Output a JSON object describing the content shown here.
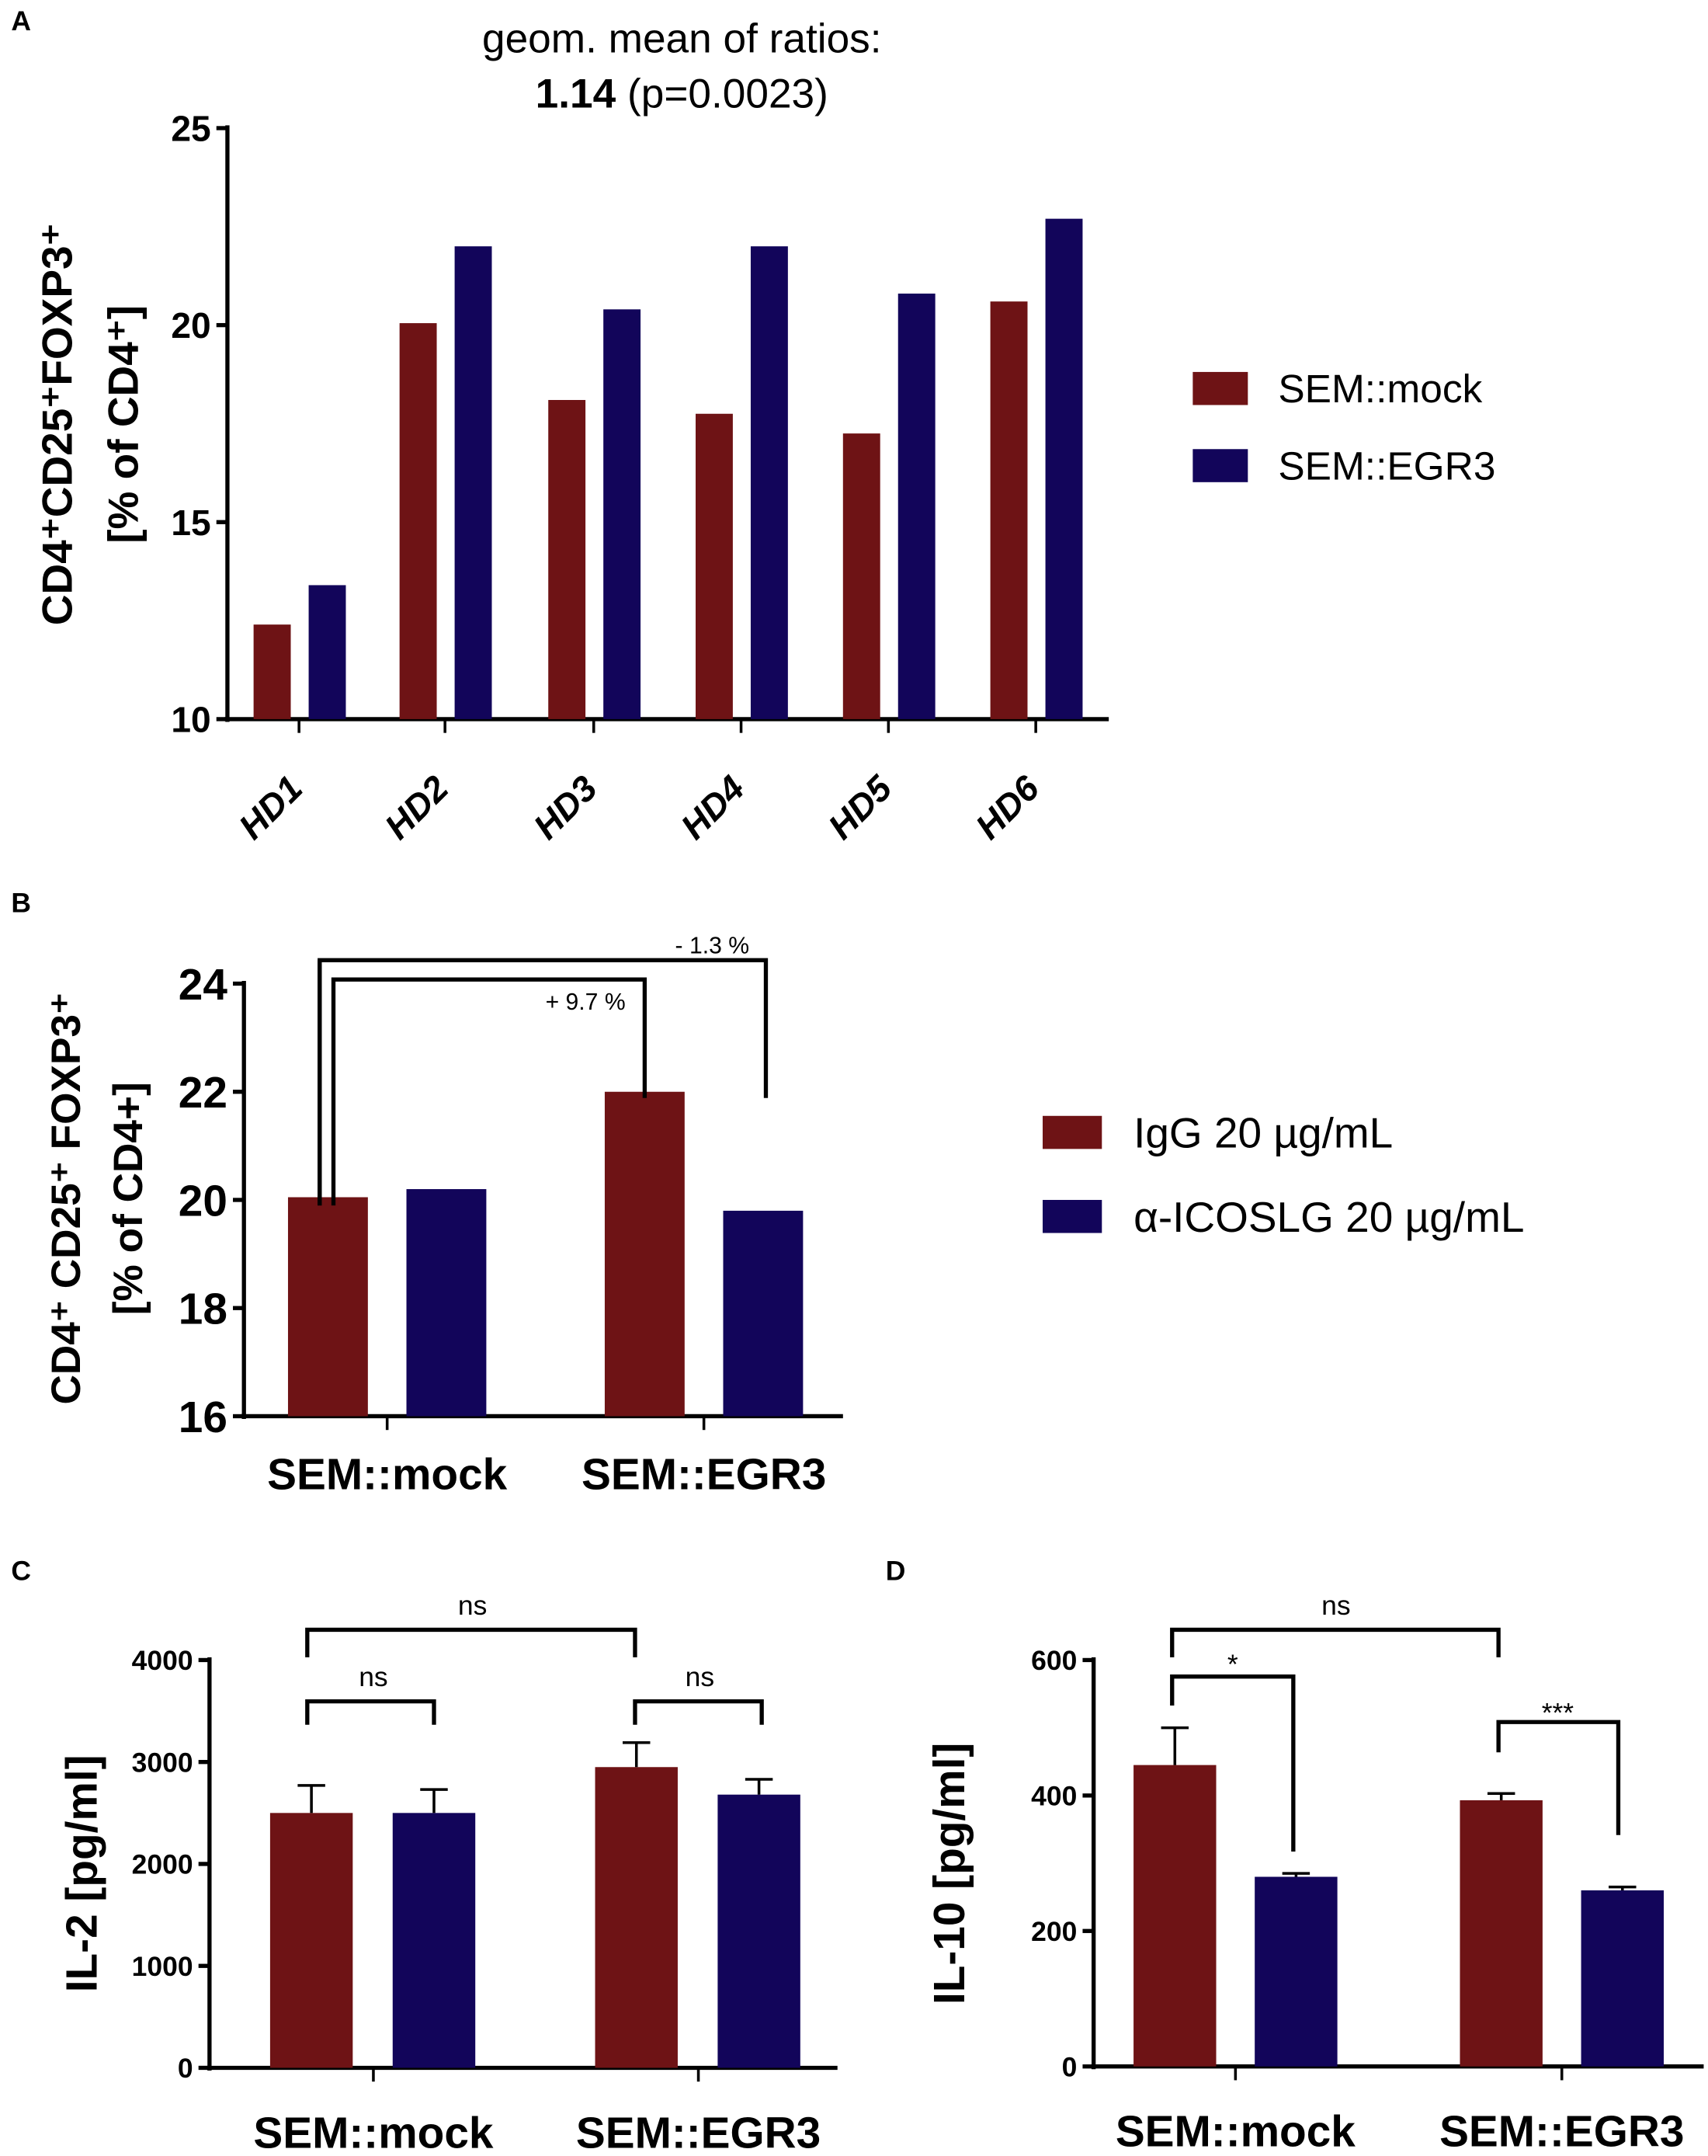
{
  "colors": {
    "red": "#6e1315",
    "blue": "#12055a"
  },
  "chart_data": [
    {
      "panel": "A",
      "type": "bar",
      "title_line1": "geom. mean of ratios:",
      "title_value": "1.14",
      "title_p": " (p=0.0023)",
      "ylabel_line1": "CD4⁺CD25⁺FOXP3⁺",
      "ylabel_line2": "[% of CD4⁺]",
      "xlabel": "",
      "ylim": [
        10,
        25
      ],
      "yticks": [
        "10",
        "15",
        "20",
        "25"
      ],
      "categories": [
        "HD1",
        "HD2",
        "HD3",
        "HD4",
        "HD5",
        "HD6"
      ],
      "legend_position": "right",
      "series": [
        {
          "name": "SEM::mock",
          "color": "#6e1315",
          "values": [
            12.4,
            20.05,
            18.1,
            17.75,
            17.25,
            20.6
          ]
        },
        {
          "name": "SEM::EGR3",
          "color": "#12055a",
          "values": [
            13.4,
            22.0,
            20.4,
            22.0,
            20.8,
            22.7
          ]
        }
      ]
    },
    {
      "panel": "B",
      "type": "bar",
      "ylabel_line1": "CD4⁺ CD25⁺ FOXP3⁺",
      "ylabel_line2": "[% of CD4+]",
      "ylim": [
        16,
        24
      ],
      "yticks": [
        "16",
        "18",
        "20",
        "22",
        "24"
      ],
      "categories": [
        "SEM::mock",
        "SEM::EGR3"
      ],
      "legend_position": "right",
      "series": [
        {
          "name": "IgG 20 µg/mL",
          "color": "#6e1315",
          "values": [
            20.05,
            22.0
          ]
        },
        {
          "name": "α-ICOSLG 20 µg/mL",
          "color": "#12055a",
          "values": [
            20.2,
            19.8
          ]
        }
      ],
      "annotations": [
        "- 1.3 %",
        "+ 9.7 %"
      ]
    },
    {
      "panel": "C",
      "type": "bar",
      "ylabel": "IL-2 [pg/ml]",
      "ylim": [
        0,
        4000
      ],
      "yticks": [
        "0",
        "1000",
        "2000",
        "3000",
        "4000"
      ],
      "categories": [
        "SEM::mock",
        "SEM::EGR3"
      ],
      "series": [
        {
          "color": "#6e1315",
          "values": [
            2500,
            2950
          ],
          "errors": [
            270,
            240
          ]
        },
        {
          "color": "#12055a",
          "values": [
            2500,
            2680
          ],
          "errors": [
            230,
            150
          ]
        }
      ],
      "annotations": [
        "ns",
        "ns",
        "ns"
      ]
    },
    {
      "panel": "D",
      "type": "bar",
      "ylabel": "IL-10 [pg/ml]",
      "ylim": [
        0,
        600
      ],
      "yticks": [
        "0",
        "200",
        "400",
        "600"
      ],
      "categories": [
        "SEM::mock",
        "SEM::EGR3"
      ],
      "series": [
        {
          "color": "#6e1315",
          "values": [
            445,
            393
          ],
          "errors": [
            55,
            10
          ]
        },
        {
          "color": "#12055a",
          "values": [
            280,
            260
          ],
          "errors": [
            5,
            5
          ]
        }
      ],
      "annotations": [
        "ns",
        "*",
        "***"
      ]
    }
  ]
}
